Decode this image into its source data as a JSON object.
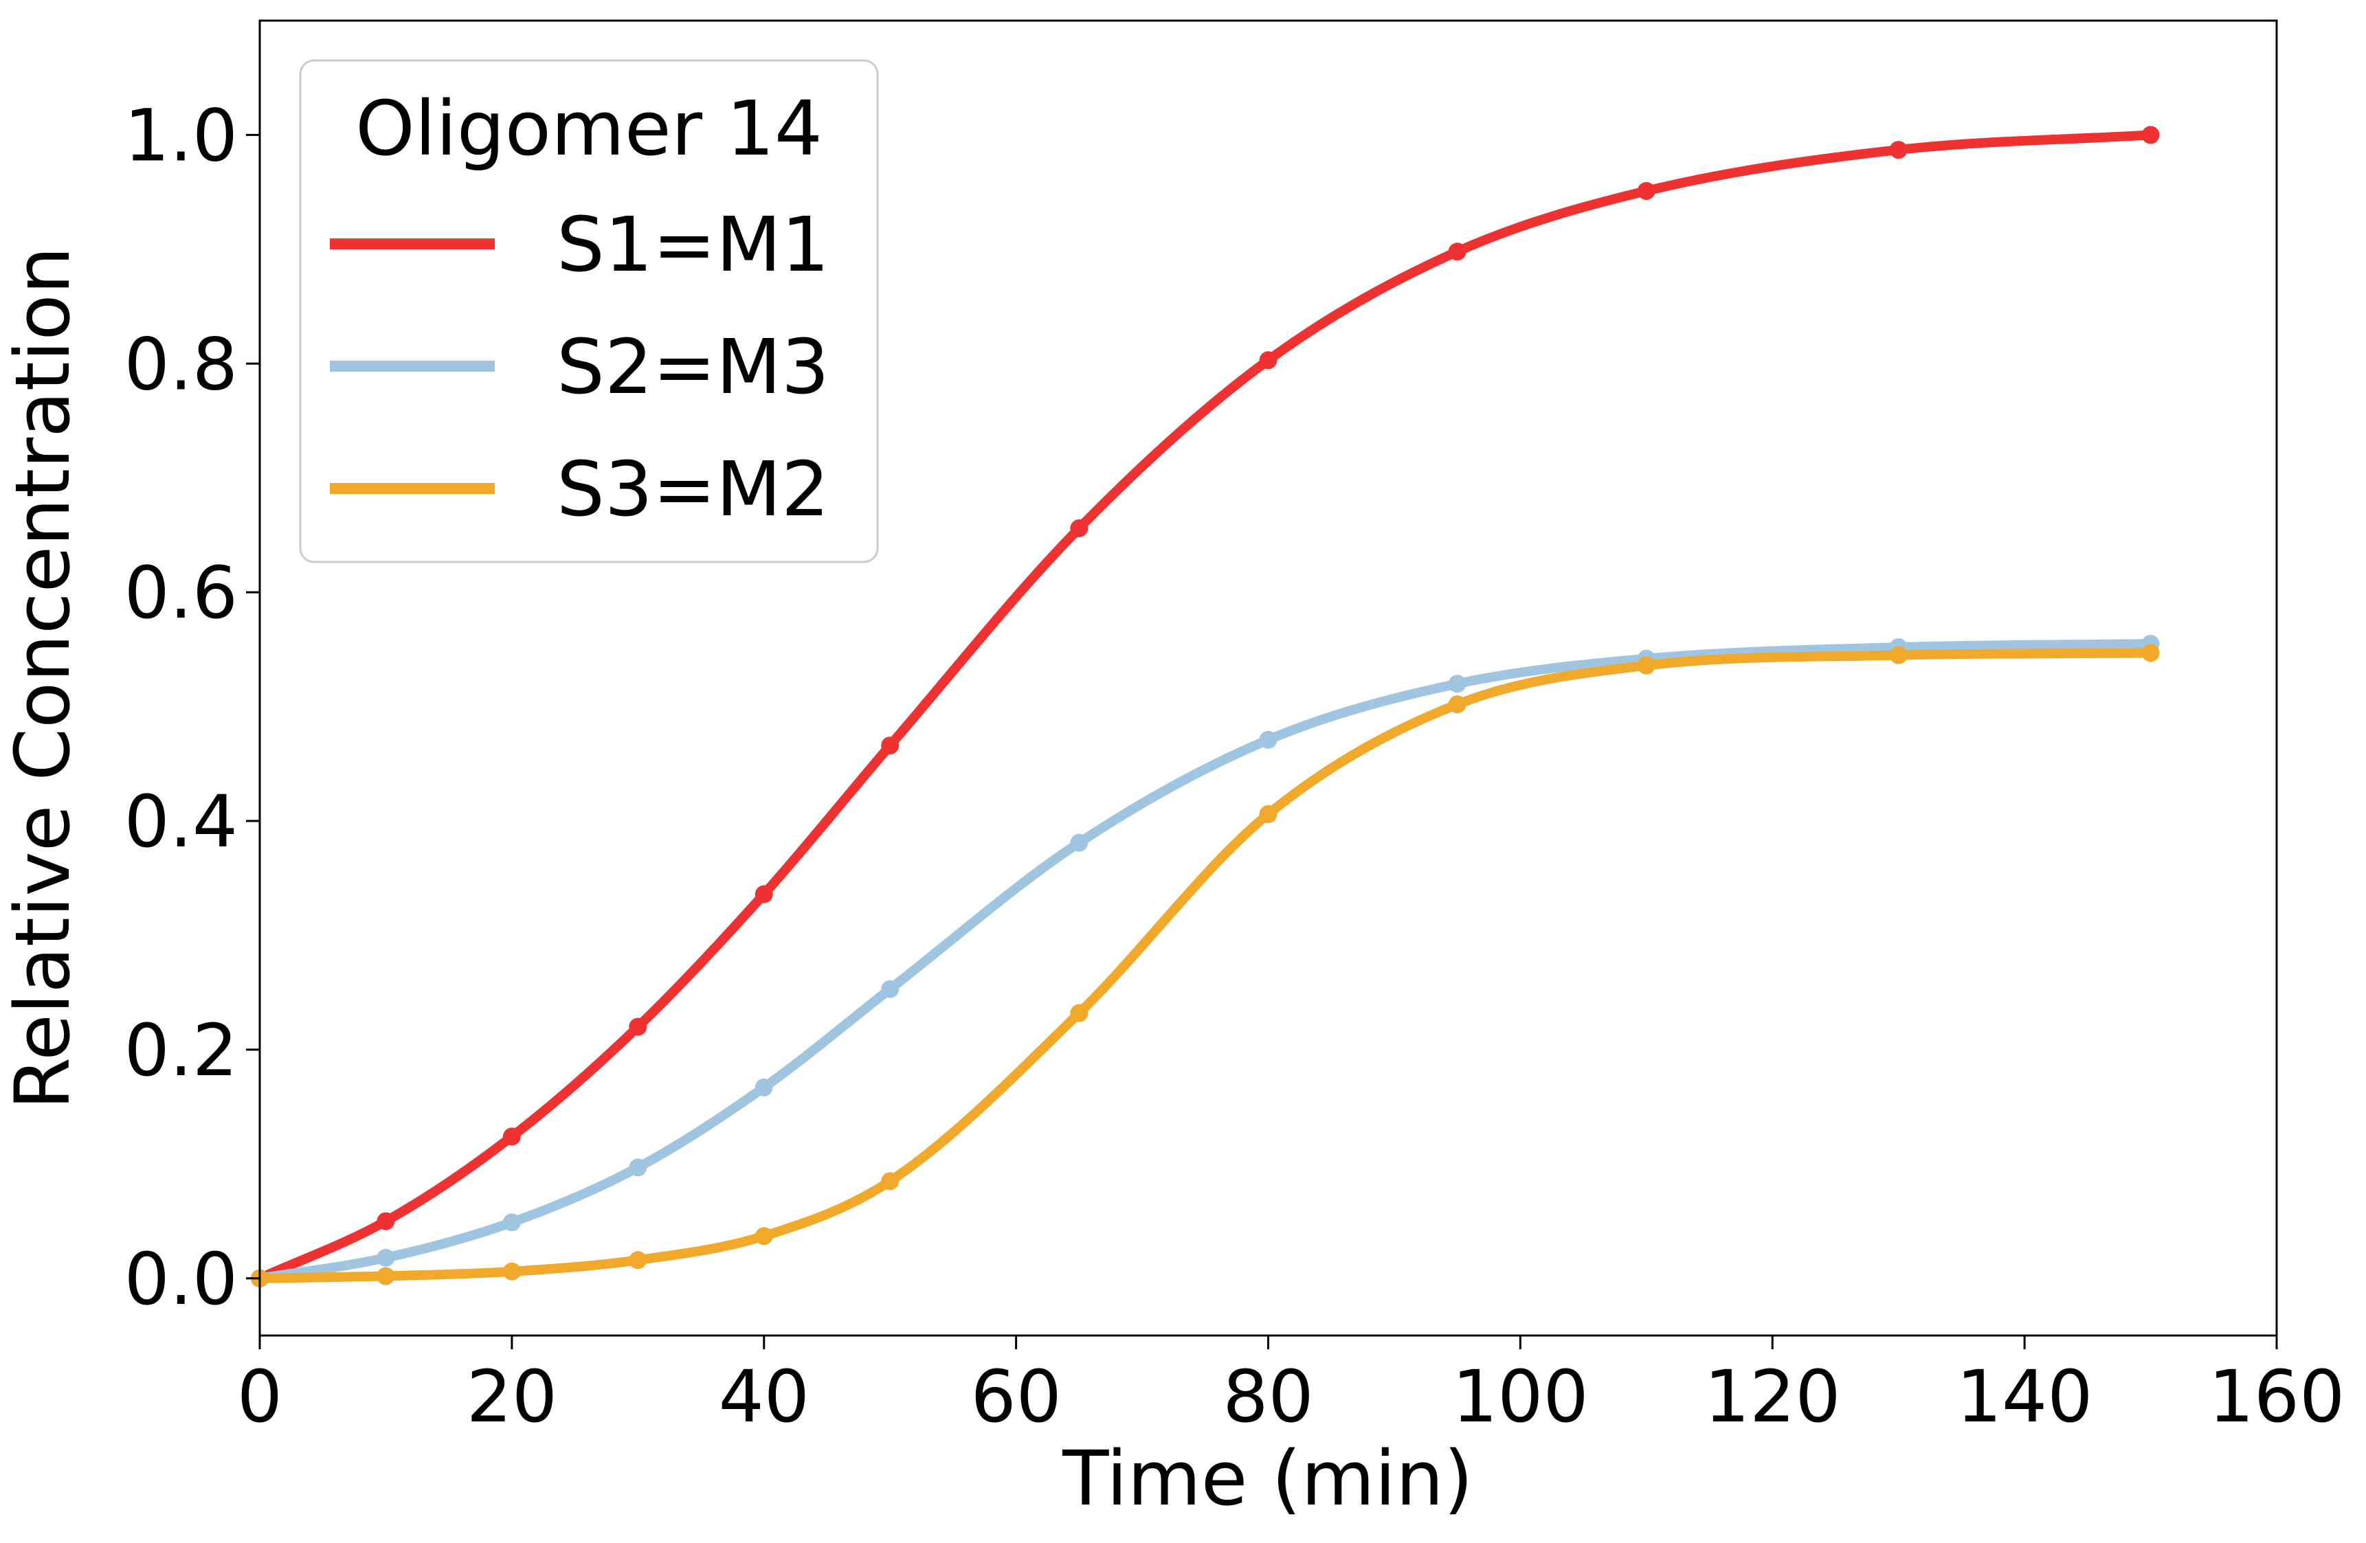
{
  "chart_data": {
    "type": "line",
    "title": "",
    "xlabel": "Time (min)",
    "ylabel": "Relative Concentration",
    "xlim": [
      0,
      160
    ],
    "ylim": [
      -0.05,
      1.1
    ],
    "xticks": [
      0,
      20,
      40,
      60,
      80,
      100,
      120,
      140,
      160
    ],
    "yticks": [
      0.0,
      0.2,
      0.4,
      0.6,
      0.8,
      1.0
    ],
    "xtick_labels": [
      "0",
      "20",
      "40",
      "60",
      "80",
      "100",
      "120",
      "140",
      "160"
    ],
    "ytick_labels": [
      "0.0",
      "0.2",
      "0.4",
      "0.6",
      "0.8",
      "1.0"
    ],
    "grid": false,
    "legend": {
      "title": "Oligomer 14",
      "placement": "top-left"
    },
    "x": [
      0,
      10,
      20,
      30,
      40,
      50,
      65,
      80,
      95,
      110,
      130,
      150
    ],
    "series": [
      {
        "name": "S1=M1",
        "color": "#ee3131",
        "values": [
          0.0,
          0.05,
          0.124,
          0.22,
          0.336,
          0.466,
          0.656,
          0.803,
          0.898,
          0.951,
          0.987,
          1.0
        ]
      },
      {
        "name": "S2=M3",
        "color": "#9fc5e0",
        "values": [
          0.0,
          0.018,
          0.049,
          0.097,
          0.167,
          0.253,
          0.381,
          0.471,
          0.52,
          0.542,
          0.552,
          0.555
        ]
      },
      {
        "name": "S3=M2",
        "color": "#f0a92a",
        "values": [
          0.0,
          0.002,
          0.006,
          0.016,
          0.037,
          0.085,
          0.232,
          0.406,
          0.502,
          0.536,
          0.545,
          0.547
        ]
      }
    ]
  }
}
